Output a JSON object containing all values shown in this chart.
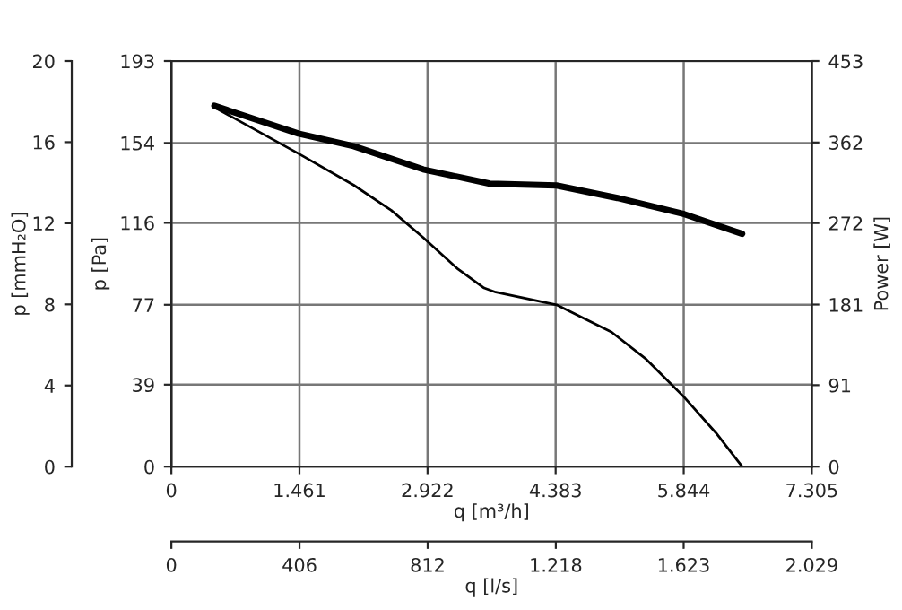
{
  "chart_data": {
    "type": "line",
    "xlabel": "q [m³/h]",
    "x2label": "q [l/s]",
    "ylabel": "p [Pa]",
    "y2label": "Power [W]",
    "y3label": "p [mmH₂O]",
    "xlim": [
      0,
      7305
    ],
    "xticks": [
      0,
      {
        "value": 1461,
        "label": "1.461"
      },
      {
        "value": 2922,
        "label": "2.922"
      },
      {
        "value": 4383,
        "label": "4.383"
      },
      {
        "value": 5844,
        "label": "5.844"
      },
      {
        "value": 7305,
        "label": "7.305"
      }
    ],
    "x2lim": [
      0,
      2029
    ],
    "x2ticks": [
      0,
      406,
      812,
      {
        "value": 1218,
        "label": "1.218"
      },
      {
        "value": 1623,
        "label": "1.623"
      },
      {
        "value": 2029,
        "label": "2.029"
      }
    ],
    "ylim": [
      0,
      193
    ],
    "yticks": [
      0,
      39,
      77,
      116,
      154,
      193
    ],
    "y2lim": [
      0,
      453
    ],
    "y2ticks": [
      0,
      91,
      181,
      272,
      362,
      453
    ],
    "y3lim": [
      0,
      20
    ],
    "y3ticks": [
      0,
      4,
      8,
      12,
      16,
      20
    ],
    "grid": true,
    "legend": false,
    "marker": "none",
    "series": [
      {
        "color": "#000000",
        "x": [
          490,
          1449,
          2078,
          2507,
          2872,
          3269,
          3567,
          3700,
          4393,
          5022,
          5419,
          5850,
          6213,
          6511
        ],
        "values": [
          171,
          149,
          134,
          122,
          109,
          94,
          85,
          83,
          77,
          64,
          51,
          33,
          16,
          0
        ]
      },
      {
        "color": "#000000",
        "axis": "y2",
        "x": [
          490,
          1449,
          2078,
          2872,
          3633,
          4393,
          5088,
          5850,
          6511
        ],
        "values": [
          403,
          372,
          358,
          332,
          316,
          314,
          300,
          282,
          260
        ]
      }
    ]
  }
}
